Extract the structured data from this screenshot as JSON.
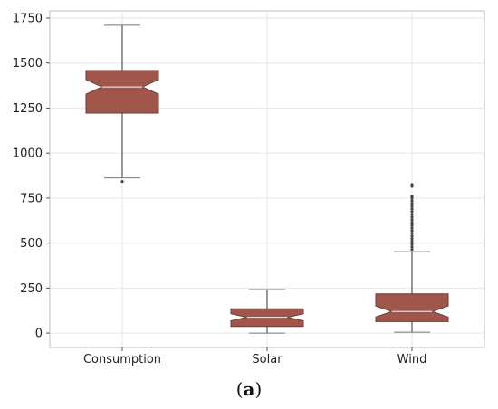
{
  "chart_data": {
    "type": "box",
    "categories": [
      "Consumption",
      "Solar",
      "Wind"
    ],
    "boxes": [
      {
        "name": "Consumption",
        "whisker_low": 862,
        "q1": 1222,
        "median": 1367,
        "q3": 1458,
        "whisker_high": 1710,
        "outliers": [
          842
        ]
      },
      {
        "name": "Solar",
        "whisker_low": 0,
        "q1": 37,
        "median": 88,
        "q3": 135,
        "whisker_high": 242,
        "outliers": []
      },
      {
        "name": "Wind",
        "whisker_low": 5,
        "q1": 64,
        "median": 120,
        "q3": 218,
        "whisker_high": 452,
        "outliers": [
          465,
          480,
          495,
          510,
          525,
          540,
          555,
          570,
          585,
          600,
          615,
          630,
          645,
          660,
          675,
          690,
          705,
          720,
          735,
          750,
          760,
          815,
          825
        ]
      }
    ],
    "yticks": [
      "0",
      "250",
      "500",
      "750",
      "1000",
      "1250",
      "1500",
      "1750"
    ],
    "ylim": [
      -80,
      1790
    ],
    "grid": true,
    "box_color": "#a0564a",
    "xlabel": "",
    "ylabel": ""
  },
  "caption": {
    "open": "(",
    "letter": "a",
    "close": ")"
  }
}
